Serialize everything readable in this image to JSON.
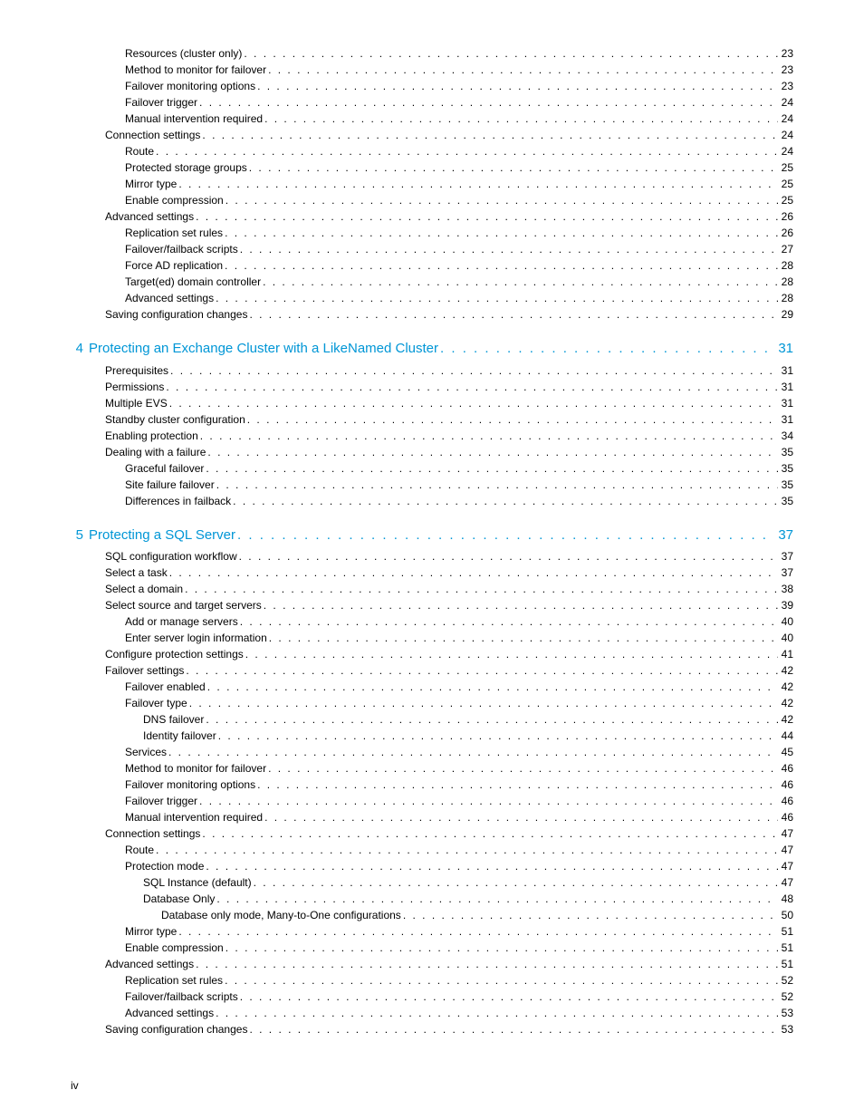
{
  "colors": {
    "accent": "#0096d6",
    "text": "#000000",
    "background": "#ffffff"
  },
  "typography": {
    "body_font_size": 12,
    "chapter_font_size": 15,
    "font_family": "Arial"
  },
  "page_number_label": "iv",
  "toc": {
    "initial_entries": [
      {
        "label": "Resources (cluster only)",
        "page": "23",
        "indent": 3
      },
      {
        "label": "Method to monitor for failover",
        "page": "23",
        "indent": 3
      },
      {
        "label": "Failover monitoring options",
        "page": "23",
        "indent": 3
      },
      {
        "label": "Failover trigger",
        "page": "24",
        "indent": 3
      },
      {
        "label": "Manual intervention required",
        "page": "24",
        "indent": 3
      },
      {
        "label": "Connection settings",
        "page": "24",
        "indent": 2
      },
      {
        "label": "Route",
        "page": "24",
        "indent": 3
      },
      {
        "label": "Protected storage groups",
        "page": "25",
        "indent": 3
      },
      {
        "label": "Mirror type",
        "page": "25",
        "indent": 3
      },
      {
        "label": "Enable compression",
        "page": "25",
        "indent": 3
      },
      {
        "label": "Advanced settings",
        "page": "26",
        "indent": 2
      },
      {
        "label": "Replication set rules",
        "page": "26",
        "indent": 3
      },
      {
        "label": "Failover/failback scripts",
        "page": "27",
        "indent": 3
      },
      {
        "label": "Force AD replication",
        "page": "28",
        "indent": 3
      },
      {
        "label": "Target(ed) domain controller",
        "page": "28",
        "indent": 3
      },
      {
        "label": "Advanced settings",
        "page": "28",
        "indent": 3
      },
      {
        "label": "Saving configuration changes",
        "page": "29",
        "indent": 2
      }
    ],
    "chapters": [
      {
        "number": "4",
        "title": "Protecting an Exchange Cluster with a Like­Named Cluster",
        "page": "31",
        "entries": [
          {
            "label": "Prerequisites",
            "page": "31",
            "indent": 2
          },
          {
            "label": "Permissions",
            "page": "31",
            "indent": 2
          },
          {
            "label": "Multiple EVS",
            "page": "31",
            "indent": 2
          },
          {
            "label": "Standby cluster configuration",
            "page": "31",
            "indent": 2
          },
          {
            "label": "Enabling protection",
            "page": "34",
            "indent": 2
          },
          {
            "label": "Dealing with a failure",
            "page": "35",
            "indent": 2
          },
          {
            "label": "Graceful failover",
            "page": "35",
            "indent": 3
          },
          {
            "label": "Site failure failover",
            "page": "35",
            "indent": 3
          },
          {
            "label": "Differences in failback",
            "page": "35",
            "indent": 3
          }
        ]
      },
      {
        "number": "5",
        "title": "Protecting a SQL Server",
        "page": "37",
        "entries": [
          {
            "label": "SQL configuration workflow",
            "page": "37",
            "indent": 2
          },
          {
            "label": "Select a task",
            "page": "37",
            "indent": 2
          },
          {
            "label": "Select a domain",
            "page": "38",
            "indent": 2
          },
          {
            "label": "Select source and target servers",
            "page": "39",
            "indent": 2
          },
          {
            "label": "Add or manage servers",
            "page": "40",
            "indent": 3
          },
          {
            "label": "Enter server login information",
            "page": "40",
            "indent": 3
          },
          {
            "label": "Configure protection settings",
            "page": "41",
            "indent": 2
          },
          {
            "label": "Failover settings",
            "page": "42",
            "indent": 2
          },
          {
            "label": "Failover enabled",
            "page": "42",
            "indent": 3
          },
          {
            "label": "Failover type",
            "page": "42",
            "indent": 3
          },
          {
            "label": "DNS failover",
            "page": "42",
            "indent": 4
          },
          {
            "label": "Identity failover",
            "page": "44",
            "indent": 4
          },
          {
            "label": "Services",
            "page": "45",
            "indent": 3
          },
          {
            "label": "Method to monitor for failover",
            "page": "46",
            "indent": 3
          },
          {
            "label": "Failover monitoring options",
            "page": "46",
            "indent": 3
          },
          {
            "label": "Failover trigger",
            "page": "46",
            "indent": 3
          },
          {
            "label": "Manual intervention required",
            "page": "46",
            "indent": 3
          },
          {
            "label": "Connection settings",
            "page": "47",
            "indent": 2
          },
          {
            "label": "Route",
            "page": "47",
            "indent": 3
          },
          {
            "label": "Protection mode",
            "page": "47",
            "indent": 3
          },
          {
            "label": "SQL Instance (default)",
            "page": "47",
            "indent": 4
          },
          {
            "label": "Database Only",
            "page": "48",
            "indent": 4
          },
          {
            "label": "Database only mode, Many-to-One configurations",
            "page": "50",
            "indent": 5
          },
          {
            "label": "Mirror type",
            "page": "51",
            "indent": 3
          },
          {
            "label": "Enable compression",
            "page": "51",
            "indent": 3
          },
          {
            "label": "Advanced settings",
            "page": "51",
            "indent": 2
          },
          {
            "label": "Replication set rules",
            "page": "52",
            "indent": 3
          },
          {
            "label": "Failover/failback scripts",
            "page": "52",
            "indent": 3
          },
          {
            "label": "Advanced settings",
            "page": "53",
            "indent": 3
          },
          {
            "label": "Saving configuration changes",
            "page": "53",
            "indent": 2
          }
        ]
      }
    ]
  }
}
